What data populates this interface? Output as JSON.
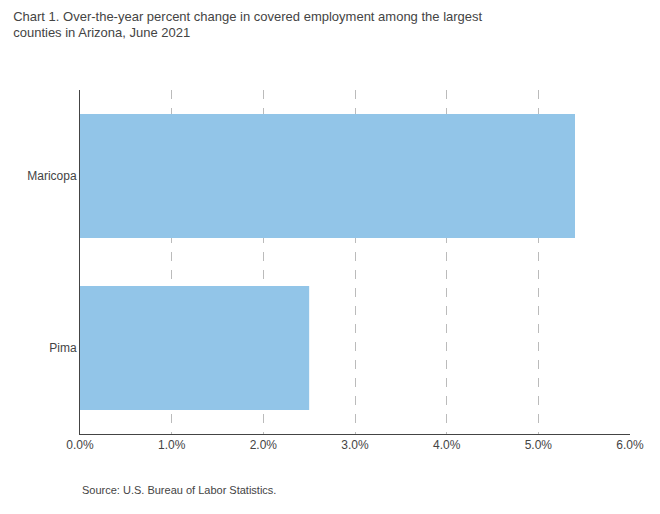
{
  "chart_data": {
    "type": "bar",
    "orientation": "horizontal",
    "title": "Chart 1. Over-the-year percent change in covered employment among the largest\ncounties in Arizona, June 2021",
    "annotations": [
      "Source: U.S. Bureau of Labor Statistics."
    ],
    "categories": [
      "Pima",
      "Maricopa"
    ],
    "values": [
      0.025,
      0.054
    ],
    "color": "#92C5E8",
    "xlim": [
      0.0,
      0.06
    ],
    "xticks": [
      {
        "value": 0.0,
        "label": "0.0%"
      },
      {
        "value": 0.01,
        "label": "1.0%"
      },
      {
        "value": 0.02,
        "label": "2.0%"
      },
      {
        "value": 0.03,
        "label": "3.0%"
      },
      {
        "value": 0.04,
        "label": "4.0%"
      },
      {
        "value": 0.05,
        "label": "5.0%"
      },
      {
        "value": 0.06,
        "label": "6.0%"
      }
    ],
    "grid": true
  }
}
